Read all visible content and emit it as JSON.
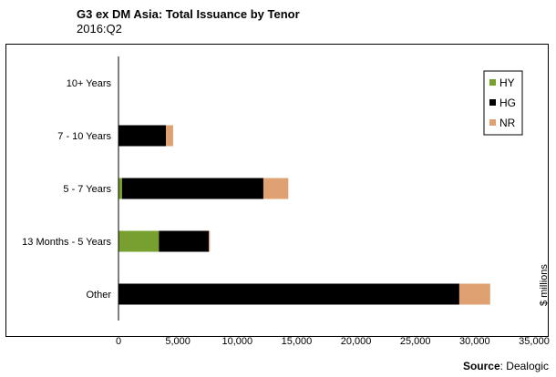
{
  "header": {
    "title": "G3 ex DM Asia: Total Issuance by Tenor",
    "subtitle": "2016:Q2"
  },
  "source": {
    "label": "Source",
    "separator": ": ",
    "value": "Dealogic"
  },
  "chart_data": {
    "type": "bar",
    "orientation": "horizontal",
    "stacked": true,
    "categories": [
      "10+ Years",
      "7 - 10 Years",
      "5 - 7 Years",
      "13 Months - 5 Years",
      "Other"
    ],
    "series": [
      {
        "name": "HY",
        "color": "#77a02f",
        "values": [
          0,
          0,
          300,
          3400,
          0
        ]
      },
      {
        "name": "HG",
        "color": "#000000",
        "values": [
          0,
          4000,
          11900,
          4200,
          28700
        ]
      },
      {
        "name": "NR",
        "color": "#dfa072",
        "values": [
          0,
          600,
          2100,
          100,
          2600
        ]
      }
    ],
    "xlabel": "$ millions",
    "xlim": [
      0,
      35000
    ],
    "xticks": [
      0,
      5000,
      10000,
      15000,
      20000,
      25000,
      30000,
      35000
    ],
    "xtick_labels": [
      "0",
      "5,000",
      "10,000",
      "15,000",
      "20,000",
      "25,000",
      "30,000",
      "35,000"
    ],
    "grid": false,
    "legend": "top-right"
  }
}
